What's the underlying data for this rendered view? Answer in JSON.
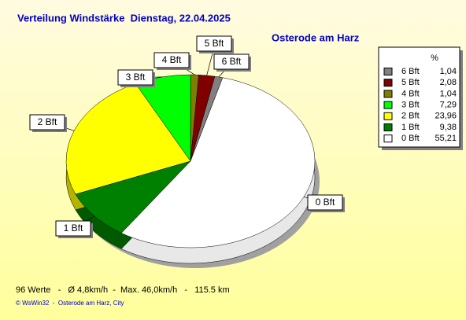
{
  "chart_data": {
    "type": "pie",
    "title": "Verteilung Windstärke  Dienstag, 22.04.2025",
    "subtitle": "Osterode am Harz",
    "legend_header": "%",
    "categories": [
      "6 Bft",
      "5 Bft",
      "4 Bft",
      "3 Bft",
      "2 Bft",
      "1 Bft",
      "0 Bft"
    ],
    "values": [
      1.04,
      2.08,
      1.04,
      7.29,
      23.96,
      9.38,
      55.21
    ],
    "value_labels": [
      "1,04",
      "2,08",
      "1,04",
      "7,29",
      "23,96",
      "9,38",
      "55,21"
    ],
    "colors": [
      "#808080",
      "#800000",
      "#808000",
      "#00ff00",
      "#ffff00",
      "#008000",
      "#ffffff"
    ],
    "footer": "96 Werte   -   Ø 4,8km/h  -  Max. 46,0km/h   -   115.5 km",
    "copyright": "© WsWin32  -  Osterode am Harz, City"
  }
}
